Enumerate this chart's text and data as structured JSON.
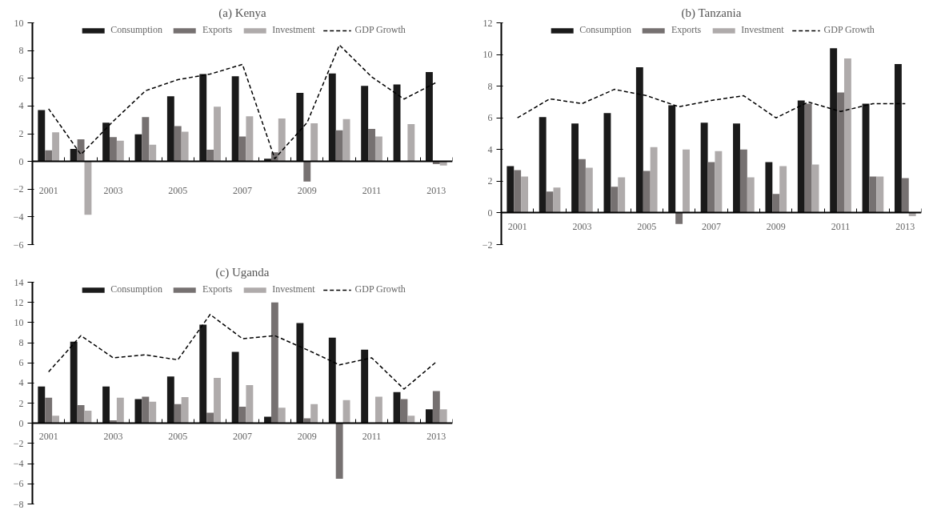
{
  "chart_data": [
    {
      "type": "bar",
      "title": "(a) Kenya",
      "categories": [
        "2001",
        null,
        "2003",
        null,
        "2005",
        null,
        "2007",
        null,
        "2009",
        null,
        "2011",
        null,
        "2013"
      ],
      "ylim": [
        -6,
        10
      ],
      "yticks": [
        -6,
        -4,
        -2,
        0,
        2,
        4,
        6,
        8,
        10
      ],
      "legend": "top",
      "series": [
        {
          "name": "Consumption",
          "color": "#1a1a1a",
          "values": [
            3.7,
            0.9,
            2.8,
            1.95,
            4.7,
            6.3,
            6.15,
            0.2,
            4.95,
            6.35,
            5.45,
            5.55,
            6.45
          ]
        },
        {
          "name": "Exports",
          "color": "#767171",
          "values": [
            0.8,
            1.6,
            1.75,
            3.2,
            2.55,
            0.85,
            1.8,
            0.65,
            -1.45,
            2.25,
            2.35,
            0,
            -0.2
          ]
        },
        {
          "name": "Investment",
          "color": "#afabab",
          "values": [
            2.1,
            -3.85,
            1.5,
            1.2,
            2.15,
            3.95,
            3.25,
            3.1,
            2.75,
            3.05,
            1.8,
            2.7,
            -0.3
          ]
        },
        {
          "name": "GDP Growth",
          "color": "#000000",
          "type": "line",
          "line_style": "dashed",
          "values": [
            3.8,
            0.5,
            2.9,
            5.1,
            5.9,
            6.3,
            7.0,
            0.2,
            2.8,
            8.4,
            6.1,
            4.5,
            5.7
          ]
        }
      ]
    },
    {
      "type": "bar",
      "title": "(b) Tanzania",
      "categories": [
        "2001",
        null,
        "2003",
        null,
        "2005",
        null,
        "2007",
        null,
        "2009",
        null,
        "2011",
        null,
        "2013"
      ],
      "ylim": [
        -2,
        12
      ],
      "yticks": [
        -2,
        0,
        2,
        4,
        6,
        8,
        10,
        12
      ],
      "legend": "top",
      "series": [
        {
          "name": "Consumption",
          "color": "#1a1a1a",
          "values": [
            2.95,
            6.05,
            5.65,
            6.3,
            9.2,
            6.8,
            5.7,
            5.65,
            3.2,
            7.1,
            10.4,
            6.9,
            9.4
          ]
        },
        {
          "name": "Exports",
          "color": "#767171",
          "values": [
            2.7,
            1.35,
            3.4,
            1.65,
            2.65,
            -0.7,
            3.2,
            4.0,
            1.2,
            6.9,
            7.6,
            2.3,
            2.2
          ]
        },
        {
          "name": "Investment",
          "color": "#afabab",
          "values": [
            2.3,
            1.6,
            2.85,
            2.25,
            4.15,
            4.0,
            3.9,
            2.25,
            2.95,
            3.05,
            9.75,
            2.3,
            -0.2
          ]
        },
        {
          "name": "GDP Growth",
          "color": "#000000",
          "type": "line",
          "line_style": "dashed",
          "values": [
            6.0,
            7.2,
            6.9,
            7.8,
            7.4,
            6.7,
            7.1,
            7.4,
            6.0,
            7.0,
            6.4,
            6.9,
            6.9
          ]
        }
      ]
    },
    {
      "type": "bar",
      "title": "(c) Uganda",
      "categories": [
        "2001",
        null,
        "2003",
        null,
        "2005",
        null,
        "2007",
        null,
        "2009",
        null,
        "2011",
        null,
        "2013"
      ],
      "ylim": [
        -8,
        14
      ],
      "yticks": [
        -8,
        -6,
        -4,
        -2,
        0,
        2,
        4,
        6,
        8,
        10,
        12,
        14
      ],
      "legend": "top",
      "series": [
        {
          "name": "Consumption",
          "color": "#1a1a1a",
          "values": [
            3.65,
            8.1,
            3.65,
            2.4,
            4.65,
            9.8,
            7.1,
            0.65,
            9.95,
            8.5,
            7.3,
            3.1,
            1.4
          ]
        },
        {
          "name": "Exports",
          "color": "#767171",
          "values": [
            2.55,
            1.8,
            0.3,
            2.65,
            1.9,
            1.05,
            1.65,
            12.0,
            0.5,
            -5.5,
            0,
            2.4,
            3.2
          ]
        },
        {
          "name": "Investment",
          "color": "#afabab",
          "values": [
            0.75,
            1.25,
            2.55,
            2.15,
            2.6,
            4.5,
            3.8,
            1.55,
            1.9,
            2.3,
            2.65,
            0.75,
            1.4
          ]
        },
        {
          "name": "GDP Growth",
          "color": "#000000",
          "type": "line",
          "line_style": "dashed",
          "values": [
            5.1,
            8.7,
            6.5,
            6.8,
            6.3,
            10.8,
            8.4,
            8.7,
            7.3,
            5.8,
            6.5,
            3.4,
            6.1
          ]
        }
      ]
    }
  ]
}
